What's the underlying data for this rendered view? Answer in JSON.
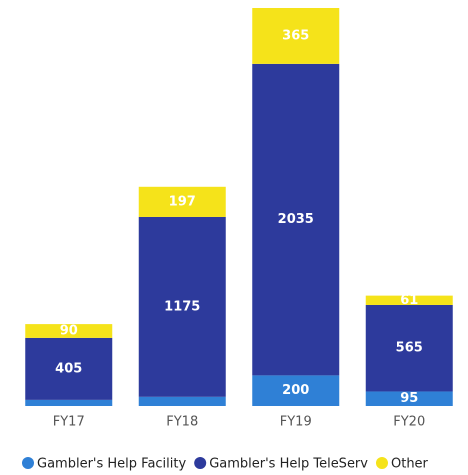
{
  "chart_data": {
    "type": "stacked_bar",
    "categories": [
      "FY17",
      "FY18",
      "FY19",
      "FY20"
    ],
    "series": [
      {
        "name": "Gambler's Help Facility",
        "color": "#2f80d6",
        "values": [
          40,
          60,
          200,
          95
        ],
        "value_labels": [
          null,
          null,
          "200",
          "95"
        ]
      },
      {
        "name": "Gambler's Help TeleServ",
        "color": "#2d3a9c",
        "values": [
          405,
          1175,
          2035,
          565
        ],
        "value_labels": [
          "405",
          "1175",
          "2035",
          "565"
        ]
      },
      {
        "name": "Other",
        "color": "#f5e31a",
        "values": [
          90,
          197,
          365,
          61
        ],
        "value_labels": [
          "90",
          "197",
          "365",
          "61"
        ]
      }
    ]
  }
}
